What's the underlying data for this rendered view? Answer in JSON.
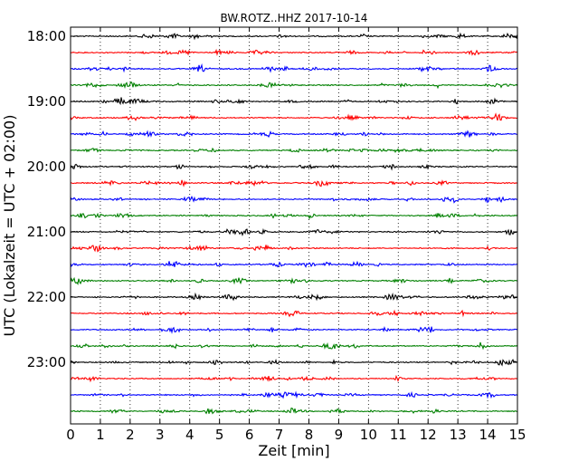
{
  "chart_data": {
    "type": "line",
    "title": "BW.ROTZ..HHZ 2017-10-14",
    "xlabel": "Zeit  [min]",
    "ylabel": "UTC (Lokalzeit = UTC + 02:00)",
    "xlim": [
      0,
      15
    ],
    "x_ticks": [
      "0",
      "1",
      "2",
      "3",
      "4",
      "5",
      "6",
      "7",
      "8",
      "9",
      "10",
      "11",
      "12",
      "13",
      "14",
      "15"
    ],
    "y_tick_labels": [
      "18:00",
      "19:00",
      "20:00",
      "21:00",
      "22:00",
      "23:00"
    ],
    "grid": "vertical dotted",
    "line_colors": [
      "#000000",
      "#ff0000",
      "#0000ff",
      "#008000"
    ],
    "rows_start": "18:00",
    "row_interval_min": 15,
    "row_count": 24
  }
}
